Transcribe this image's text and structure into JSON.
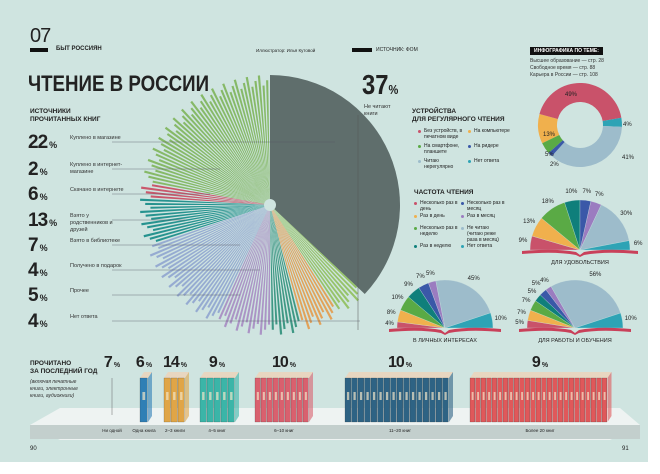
{
  "header": {
    "section_number": "07",
    "section_title": "БЫТ РОССИЯН",
    "illustrator": "Иллюстратор: Илья Кутовой",
    "source": "ИСТОЧНИК: ФОМ",
    "title": "ЧТЕНИЕ В РОССИИ"
  },
  "related": {
    "title": "ИНФОГРАФИКА ПО ТЕМЕ:",
    "items": [
      "Высшее образование — стр. 28",
      "Свободное время — стр. 88",
      "Карьера в России — стр. 108"
    ]
  },
  "sources": {
    "title_1": "ИСТОЧНИКИ",
    "title_2": "ПРОЧИТАННЫХ КНИГ",
    "pct_sign": "%"
  },
  "not_reading": {
    "value": "37",
    "sign": "%",
    "label": "Не читают книги"
  },
  "devices_title_1": "УСТРОЙСТВА",
  "devices_title_2": "ДЛЯ РЕГУЛЯРНОГО ЧТЕНИЯ",
  "freq_title": "ЧАСТОТА ЧТЕНИЯ",
  "year": {
    "title_1": "ПРОЧИТАНО",
    "title_2": "ЗА ПОСЛЕДНИЙ ГОД",
    "note": "(включая печатные книги, электронные книги, аудиокниги)"
  },
  "page_numbers": {
    "left": "90",
    "right": "91"
  },
  "chart_data": [
    {
      "type": "pie",
      "name": "sources",
      "title": "ИСТОЧНИКИ ПРОЧИТАННЫХ КНИГ",
      "categories": [
        "Не читают книги",
        "Куплено в магазине",
        "Куплено в интернет-магазине",
        "Скачано в интернете",
        "Взято у родственников и друзей",
        "Взято в библиотеке",
        "Получено в подарок",
        "Прочее",
        "Нет ответа"
      ],
      "values": [
        37,
        22,
        2,
        6,
        13,
        7,
        4,
        5,
        4
      ],
      "colors": [
        "#5f6e6c",
        "#7db45a",
        "#c9475e",
        "#138a86",
        "#8fa4cf",
        "#a68bc2",
        "#2d8f7a",
        "#e39a4a",
        "#8fbf5c"
      ]
    },
    {
      "type": "pie",
      "name": "devices",
      "title": "УСТРОЙСТВА ДЛЯ РЕГУЛЯРНОГО ЧТЕНИЯ",
      "donut": true,
      "categories": [
        "Без устройств, в печатном виде",
        "На компьютере",
        "На смартфоне, планшете",
        "На ридере",
        "Читаю нерегулярно",
        "Нет ответа"
      ],
      "values": [
        49,
        13,
        5,
        2,
        41,
        4
      ],
      "colors": [
        "#c9526a",
        "#f0b04d",
        "#5aaa45",
        "#3a58a8",
        "#9dbccb",
        "#2ea3b5"
      ]
    },
    {
      "type": "pie",
      "name": "frequency",
      "title": "ЧАСТОТА ЧТЕНИЯ",
      "half": true,
      "categories": [
        "Несколько раз в день",
        "Раз в день",
        "Несколько раз в неделю",
        "Раз в неделю",
        "Несколько раз в месяц",
        "Раз в месяц",
        "Не читаю (читаю реже раза в месяц)",
        "Нет ответа"
      ],
      "colors": [
        "#c9526a",
        "#f0b04d",
        "#5aaa45",
        "#0f7f7b",
        "#3a58a8",
        "#9b7cc0",
        "#9dbccb",
        "#2ea3b5"
      ],
      "series": [
        {
          "name": "ДЛЯ УДОВОЛЬСТВИЯ",
          "values": [
            9,
            13,
            18,
            10,
            7,
            7,
            30,
            6
          ]
        },
        {
          "name": "В ЛИЧНЫХ ИНТЕРЕСАХ",
          "values": [
            4,
            8,
            10,
            9,
            7,
            5,
            45,
            10
          ]
        },
        {
          "name": "ДЛЯ РАБОТЫ И ОБУЧЕНИЯ",
          "values": [
            5,
            7,
            7,
            5,
            5,
            4,
            56,
            10
          ]
        }
      ]
    },
    {
      "type": "bar",
      "name": "books_per_year",
      "title": "ПРОЧИТАНО ЗА ПОСЛЕДНИЙ ГОД",
      "categories": [
        "Ни одной",
        "Одна книга",
        "2–3 книги",
        "4–5 книг",
        "6–10 книг",
        "11–20 книг",
        "Более 20 книг"
      ],
      "values": [
        7,
        6,
        14,
        9,
        10,
        10,
        9
      ],
      "colors": [
        "#888888",
        "#2f7fb5",
        "#e0a547",
        "#3bb5a8",
        "#d9606e",
        "#2e6384",
        "#e0585a"
      ]
    }
  ]
}
